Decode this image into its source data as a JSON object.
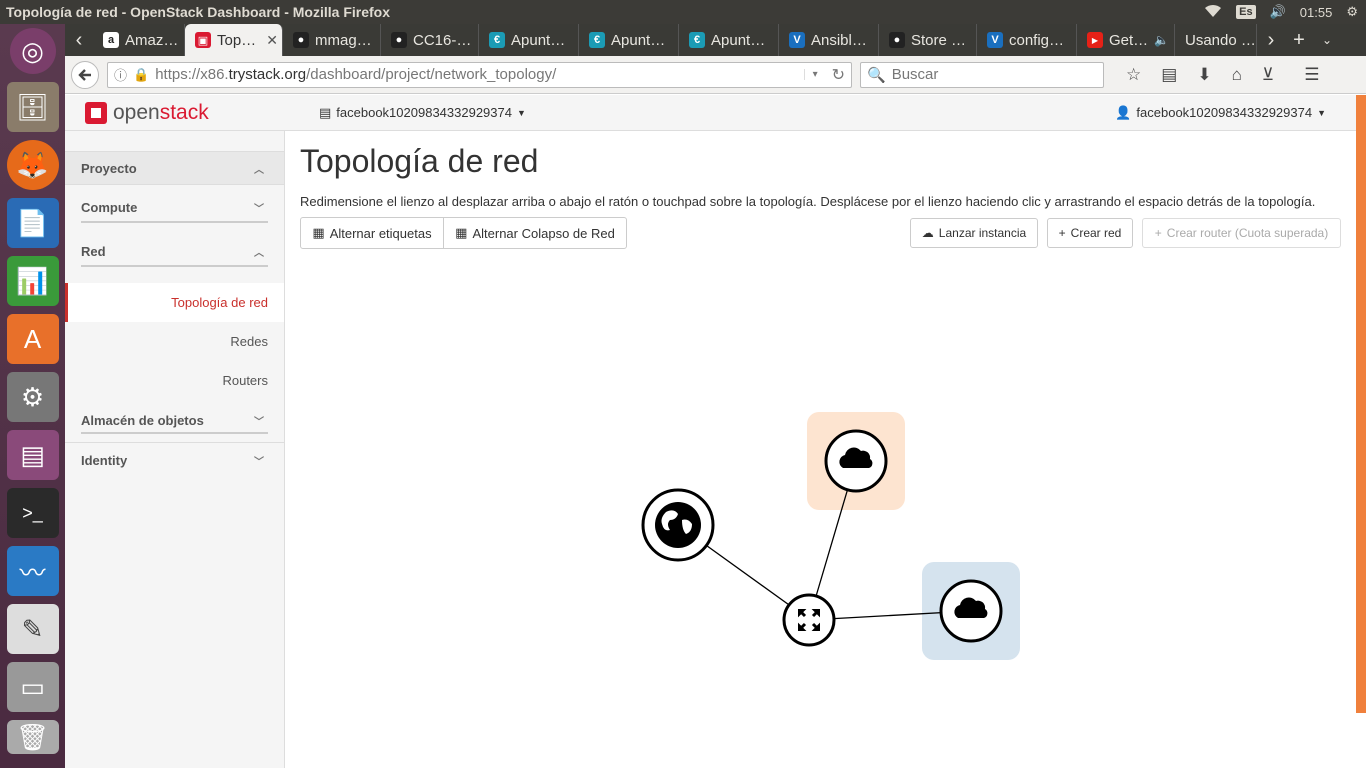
{
  "window": {
    "title": "Topología de red - OpenStack Dashboard - Mozilla Firefox"
  },
  "tray": {
    "keyboard": "Es",
    "clock": "01:55"
  },
  "tabs": [
    {
      "label": "Amaz…",
      "favicon": "a",
      "color": "#222"
    },
    {
      "label": "Top…",
      "favicon": "▣",
      "color": "#da1a32",
      "active": true
    },
    {
      "label": "mmag…",
      "favicon": "●",
      "color": "#222"
    },
    {
      "label": "CC16-…",
      "favicon": "●",
      "color": "#222"
    },
    {
      "label": "Apunt…",
      "favicon": "€",
      "color": "#1b9bb5"
    },
    {
      "label": "Apunt…",
      "favicon": "€",
      "color": "#1b9bb5"
    },
    {
      "label": "Apunt…",
      "favicon": "€",
      "color": "#1b9bb5"
    },
    {
      "label": "Ansibl…",
      "favicon": "V",
      "color": "#1a6fbf"
    },
    {
      "label": "Store …",
      "favicon": "●",
      "color": "#222"
    },
    {
      "label": "config…",
      "favicon": "V",
      "color": "#1a6fbf"
    },
    {
      "label": "Get…",
      "favicon": "▶",
      "color": "#e62117"
    },
    {
      "label": "Usando …",
      "favicon": "",
      "color": "transparent"
    }
  ],
  "nav": {
    "url_prefix": "https://x86.",
    "url_host": "trystack.org",
    "url_path": "/dashboard/project/network_topology/",
    "search_placeholder": "Buscar"
  },
  "header": {
    "logo_open": "open",
    "logo_stack": "stack",
    "project": "facebook10209834332929374",
    "user": "facebook10209834332929374"
  },
  "sidebar": {
    "proyecto": "Proyecto",
    "compute": "Compute",
    "red": "Red",
    "items": [
      "Topología de red",
      "Redes",
      "Routers"
    ],
    "almacen": "Almacén de objetos",
    "identity": "Identity"
  },
  "main": {
    "title": "Topología de red",
    "description": "Redimensione el lienzo al desplazar arriba o abajo el ratón o touchpad sobre la topología. Desplácese por el lienzo haciendo clic y arrastrando el espacio detrás de la topología.",
    "btn_labels": "Alternar etiquetas",
    "btn_collapse": "Alternar Colapso de Red",
    "btn_launch": "Lanzar instancia",
    "btn_create_net": "Crear red",
    "btn_create_router": "Crear router (Cuota superada)"
  },
  "colors": {
    "network1_bg": "#fde4d0",
    "network2_bg": "#d5e3ee",
    "accent": "#da1a32"
  }
}
